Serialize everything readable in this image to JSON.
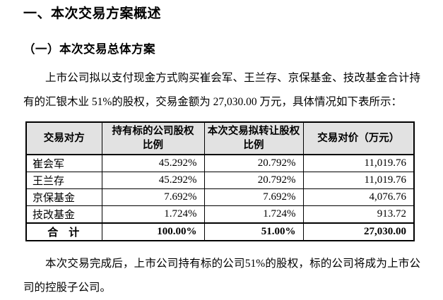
{
  "document": {
    "heading1": "一、本次交易方案概述",
    "heading2": "（一）本次交易总体方案",
    "paragraph1": "上市公司拟以支付现金方式购买崔会军、王兰存、京保基金、技改基金合计持有的汇银木业 51%的股权，交易金额为 27,030.00 万元，具体情况如下表所示：",
    "paragraph2": "本次交易完成后，上市公司持有标的公司51%的股权，标的公司将成为上市公司的控股子公司。"
  },
  "table": {
    "headers": {
      "party": "交易对方",
      "held_ratio": "持有标的公司股权\n比例",
      "transfer_ratio": "本次交易拟转让股权\n比例",
      "price": "交易对价（万元）"
    },
    "rows": [
      {
        "party": "崔会军",
        "held_ratio": "45.292%",
        "transfer_ratio": "20.792%",
        "price": "11,019.76"
      },
      {
        "party": "王兰存",
        "held_ratio": "45.292%",
        "transfer_ratio": "20.792%",
        "price": "11,019.76"
      },
      {
        "party": "京保基金",
        "held_ratio": "7.692%",
        "transfer_ratio": "7.692%",
        "price": "4,076.76"
      },
      {
        "party": "技改基金",
        "held_ratio": "1.724%",
        "transfer_ratio": "1.724%",
        "price": "913.72"
      }
    ],
    "total": {
      "party": "合　计",
      "held_ratio": "100.00%",
      "transfer_ratio": "51.00%",
      "price": "27,030.00"
    }
  },
  "colors": {
    "header_bg": "#e2e2e2",
    "border": "#000000",
    "text": "#000000",
    "page_bg": "#ffffff"
  }
}
